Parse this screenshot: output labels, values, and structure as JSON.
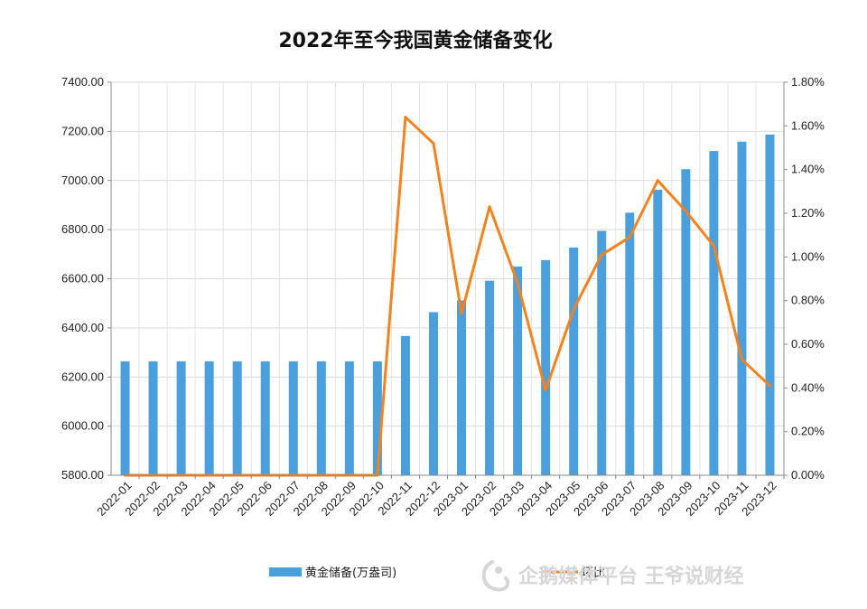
{
  "chart_data": {
    "type": "bar+line",
    "title": "2022年至今我国黄金储备变化",
    "categories": [
      "2022-01",
      "2022-02",
      "2022-03",
      "2022-04",
      "2022-05",
      "2022-06",
      "2022-07",
      "2022-08",
      "2022-09",
      "2022-10",
      "2022-11",
      "2022-12",
      "2023-01",
      "2023-02",
      "2023-03",
      "2023-04",
      "2023-05",
      "2023-06",
      "2023-07",
      "2023-08",
      "2023-09",
      "2023-10",
      "2023-11",
      "2023-12"
    ],
    "y_left": {
      "ylim": [
        5800,
        7400
      ],
      "ticks": [
        "7400.00",
        "7200.00",
        "7000.00",
        "6800.00",
        "6600.00",
        "6400.00",
        "6200.00",
        "6000.00",
        "5800.00"
      ]
    },
    "y_right": {
      "ylim": [
        0,
        1.8
      ],
      "ticks": [
        "1.80%",
        "1.60%",
        "1.40%",
        "1.20%",
        "1.00%",
        "0.80%",
        "0.60%",
        "0.40%",
        "0.20%",
        "0.00%"
      ]
    },
    "series": [
      {
        "name": "黄金储备(万盎司)",
        "type": "bar",
        "axis": "left",
        "color": "#4a9fdc",
        "values": [
          6264,
          6264,
          6264,
          6264,
          6264,
          6264,
          6264,
          6264,
          6264,
          6264,
          6367,
          6464,
          6512,
          6592,
          6650,
          6676,
          6727,
          6795,
          6869,
          6962,
          7046,
          7120,
          7158,
          7187
        ]
      },
      {
        "name": "环比",
        "type": "line",
        "axis": "right",
        "color": "#f5821f",
        "values": [
          0,
          0,
          0,
          0,
          0,
          0,
          0,
          0,
          0,
          0,
          1.64,
          1.52,
          0.74,
          1.23,
          0.88,
          0.39,
          0.76,
          1.01,
          1.09,
          1.35,
          1.21,
          1.05,
          0.53,
          0.41
        ]
      }
    ],
    "legend_position": "bottom",
    "grid": true
  },
  "legend": {
    "bar_label": "黄金储备(万盎司)",
    "line_label": "环比"
  },
  "watermark": {
    "text": "企鹅媒体平台 王爷说财经"
  }
}
